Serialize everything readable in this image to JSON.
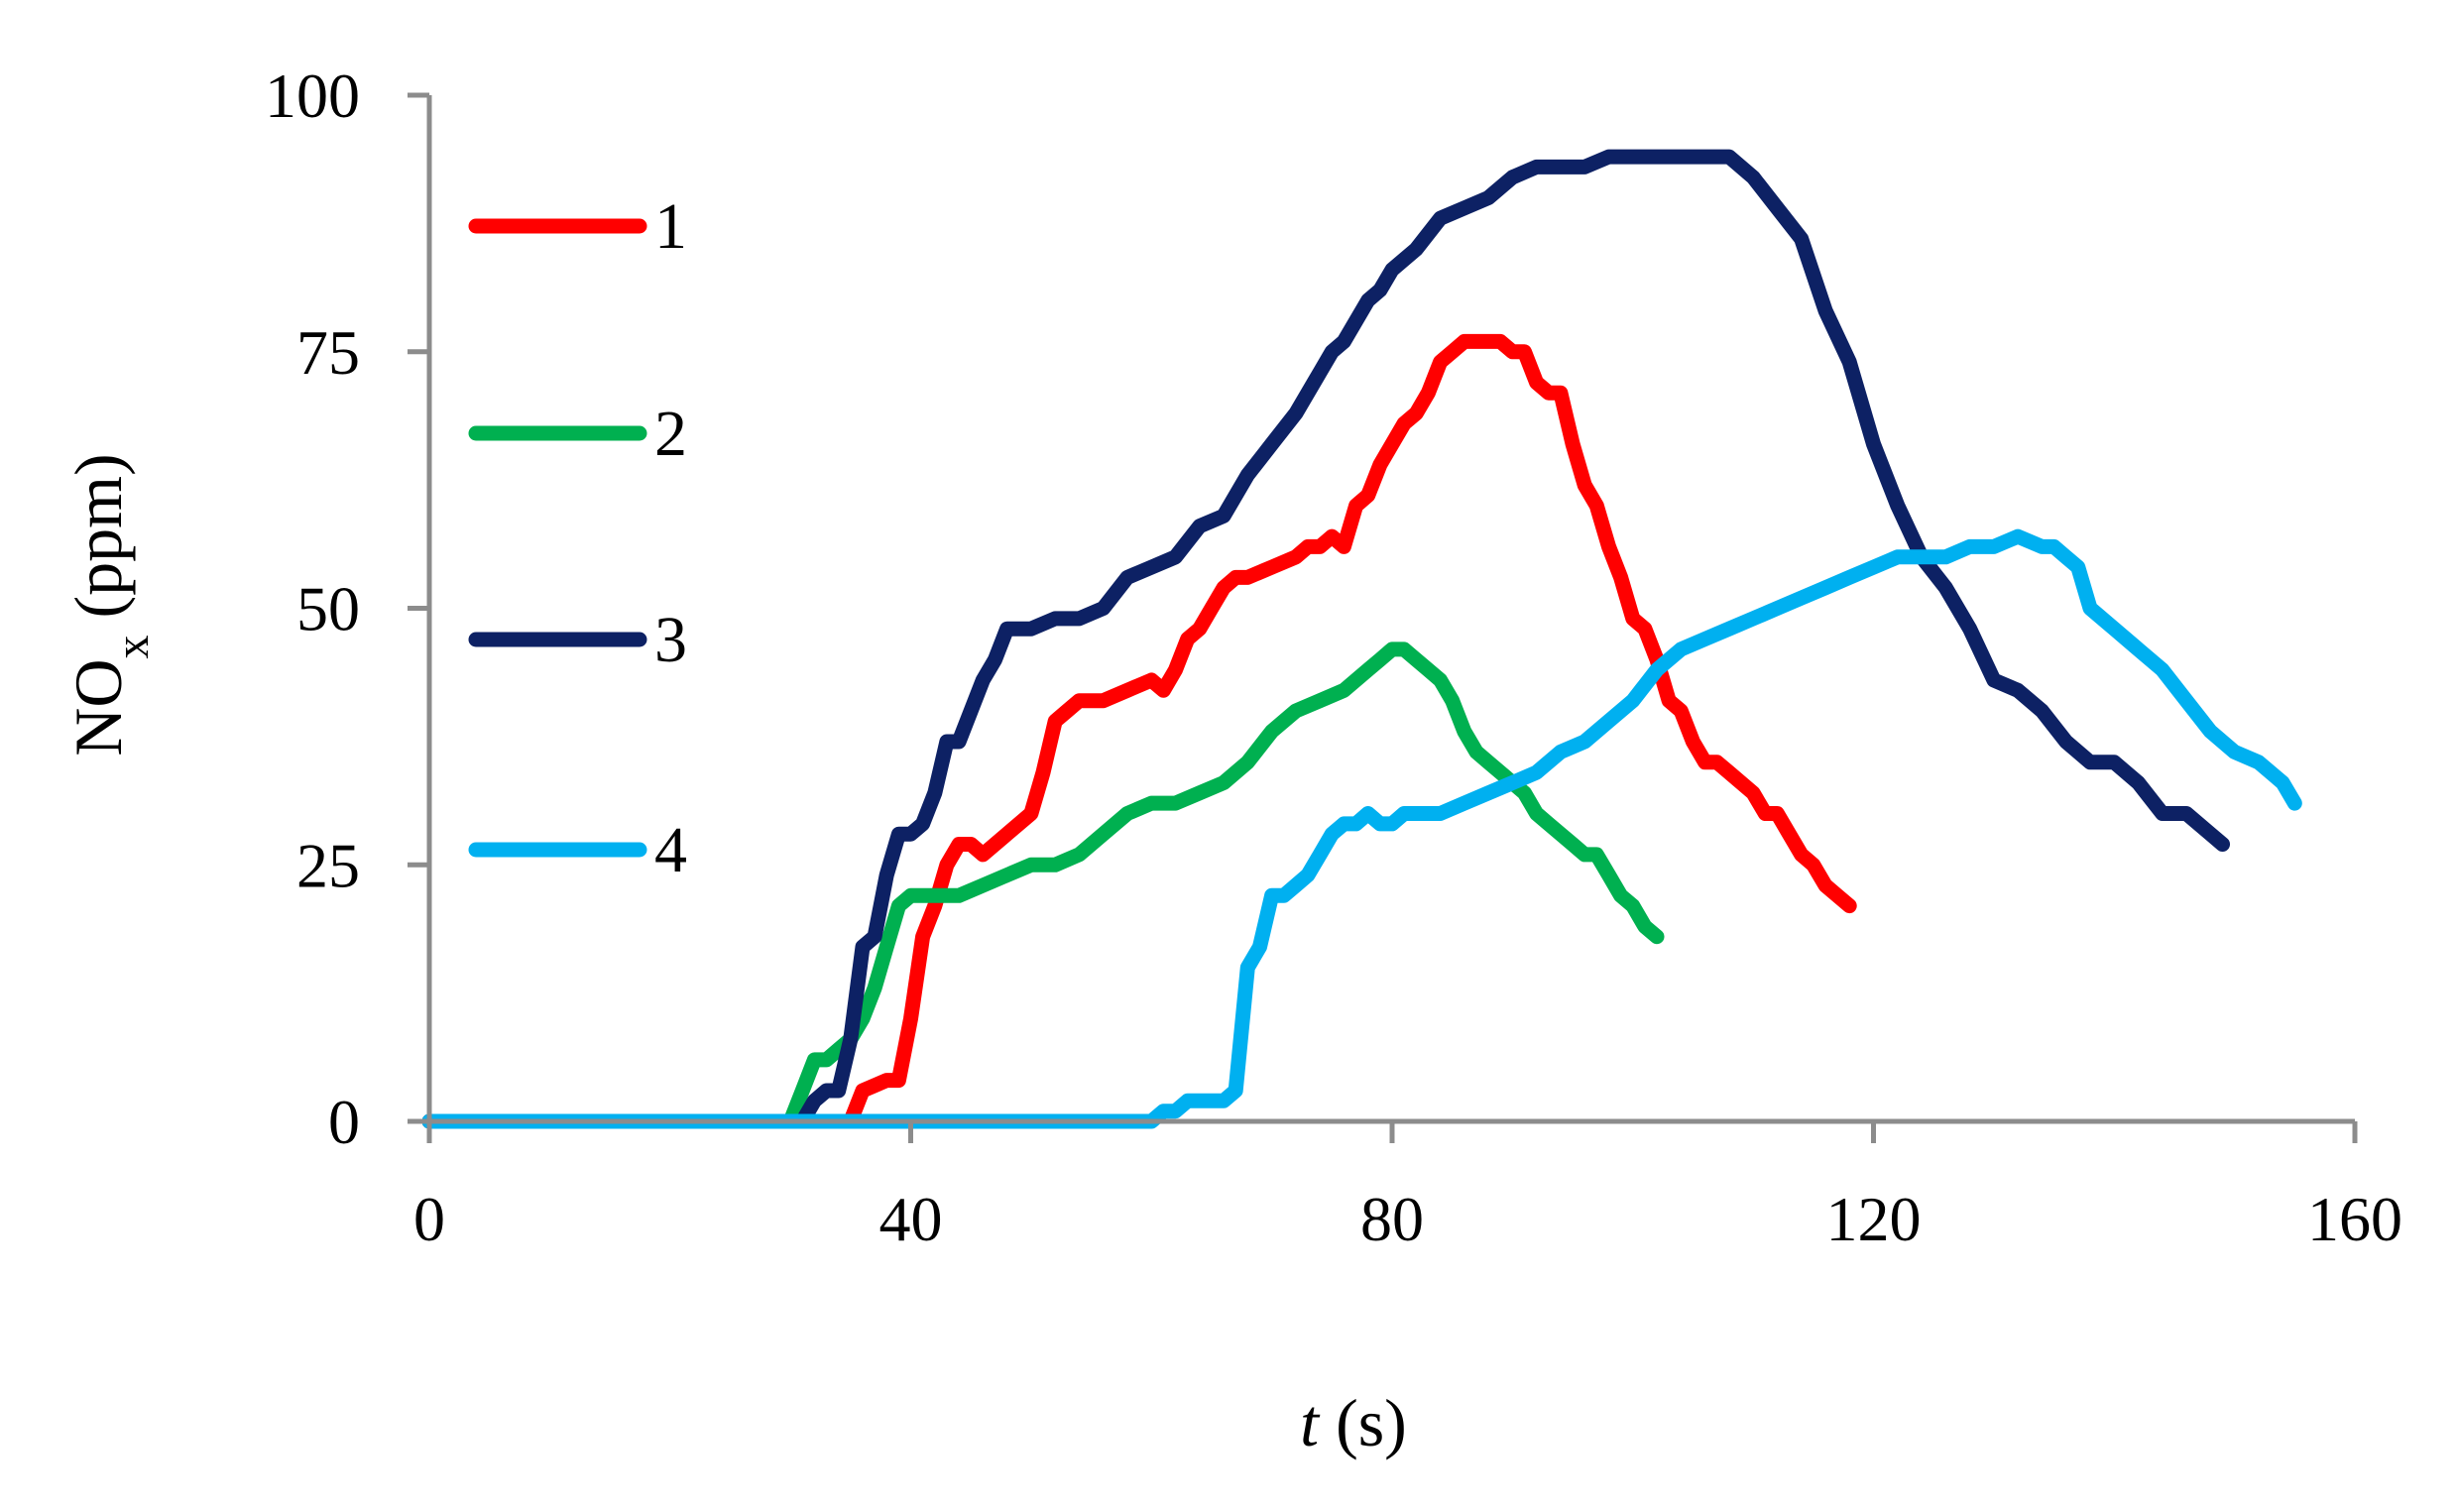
{
  "chart_data": {
    "type": "line",
    "xlabel": {
      "italic": "t",
      "rest": " (s)"
    },
    "ylabel": {
      "main": "NO",
      "sub": "x",
      "rest": " (ppm)"
    },
    "xlim": [
      0,
      160
    ],
    "ylim": [
      0,
      100
    ],
    "xticks": [
      0,
      40,
      80,
      120,
      160
    ],
    "yticks": [
      0,
      25,
      50,
      75,
      100
    ],
    "grid": false,
    "legend_placement": "top-left",
    "series": [
      {
        "name": "1",
        "color": "#ff0000",
        "x": [
          0,
          35,
          36,
          38,
          39,
          40,
          41,
          42,
          43,
          44,
          45,
          46,
          48,
          50,
          51,
          52,
          53,
          54,
          56,
          58,
          60,
          61,
          62,
          63,
          64,
          65,
          66,
          67,
          68,
          70,
          72,
          73,
          74,
          75,
          76,
          77,
          78,
          79,
          80,
          81,
          82,
          83,
          84,
          85,
          86,
          87,
          88,
          89,
          90,
          91,
          92,
          93,
          94,
          95,
          96,
          97,
          98,
          99,
          100,
          101,
          102,
          103,
          104,
          105,
          106,
          107,
          108,
          110,
          111,
          112,
          113,
          114,
          115,
          116,
          117,
          118
        ],
        "y": [
          0,
          0,
          3,
          4,
          4,
          10,
          18,
          21,
          25,
          27,
          27,
          26,
          28,
          30,
          34,
          39,
          40,
          41,
          41,
          42,
          43,
          42,
          44,
          47,
          48,
          50,
          52,
          53,
          53,
          54,
          55,
          56,
          56,
          57,
          56,
          60,
          61,
          64,
          66,
          68,
          69,
          71,
          74,
          75,
          76,
          76,
          76,
          76,
          75,
          75,
          72,
          71,
          71,
          66,
          62,
          60,
          56,
          53,
          49,
          48,
          45,
          41,
          40,
          37,
          35,
          35,
          34,
          32,
          30,
          30,
          28,
          26,
          25,
          23,
          22,
          21
        ]
      },
      {
        "name": "2",
        "color": "#00b050",
        "x": [
          0,
          30,
          31,
          32,
          33,
          34,
          35,
          36,
          37,
          38,
          39,
          40,
          42,
          44,
          46,
          48,
          50,
          52,
          54,
          56,
          58,
          60,
          62,
          64,
          66,
          68,
          70,
          72,
          74,
          76,
          78,
          79,
          80,
          81,
          82,
          83,
          84,
          85,
          86,
          87,
          88,
          89,
          90,
          91,
          92,
          93,
          94,
          95,
          96,
          97,
          98,
          99,
          100,
          101,
          102
        ],
        "y": [
          0,
          0,
          3,
          6,
          6,
          7,
          8,
          10,
          13,
          17,
          21,
          22,
          22,
          22,
          23,
          24,
          25,
          25,
          26,
          28,
          30,
          31,
          31,
          32,
          33,
          35,
          38,
          40,
          41,
          42,
          44,
          45,
          46,
          46,
          45,
          44,
          43,
          41,
          38,
          36,
          35,
          34,
          33,
          32,
          30,
          29,
          28,
          27,
          26,
          26,
          24,
          22,
          21,
          19,
          18
        ]
      },
      {
        "name": "3",
        "color": "#0d2164",
        "x": [
          0,
          30,
          31,
          32,
          33,
          34,
          35,
          36,
          37,
          38,
          39,
          40,
          41,
          42,
          43,
          44,
          45,
          46,
          47,
          48,
          50,
          52,
          54,
          56,
          58,
          60,
          62,
          64,
          66,
          68,
          70,
          72,
          74,
          75,
          76,
          78,
          79,
          80,
          82,
          84,
          86,
          88,
          90,
          92,
          94,
          96,
          98,
          100,
          102,
          104,
          106,
          108,
          110,
          112,
          114,
          116,
          118,
          120,
          122,
          124,
          126,
          128,
          130,
          132,
          134,
          136,
          138,
          140,
          142,
          144,
          146,
          148,
          149
        ],
        "y": [
          0,
          0,
          0,
          2,
          3,
          3,
          8,
          17,
          18,
          24,
          28,
          28,
          29,
          32,
          37,
          37,
          40,
          43,
          45,
          48,
          48,
          49,
          49,
          50,
          53,
          54,
          55,
          58,
          59,
          63,
          66,
          69,
          73,
          75,
          76,
          80,
          81,
          83,
          85,
          88,
          89,
          90,
          92,
          93,
          93,
          93,
          94,
          94,
          94,
          94,
          94,
          94,
          92,
          89,
          86,
          79,
          74,
          66,
          60,
          55,
          52,
          48,
          43,
          42,
          40,
          37,
          35,
          35,
          33,
          30,
          30,
          28,
          27
        ]
      },
      {
        "name": "4",
        "color": "#00b0f0",
        "x": [
          0,
          60,
          61,
          62,
          63,
          64,
          65,
          66,
          67,
          68,
          69,
          70,
          71,
          72,
          73,
          74,
          75,
          76,
          77,
          78,
          79,
          80,
          81,
          82,
          84,
          86,
          88,
          90,
          92,
          94,
          96,
          98,
          100,
          102,
          104,
          106,
          108,
          110,
          112,
          114,
          116,
          118,
          120,
          122,
          124,
          126,
          128,
          130,
          132,
          134,
          135,
          136,
          137,
          138,
          140,
          142,
          144,
          146,
          148,
          150,
          152,
          154,
          155
        ],
        "y": [
          0,
          0,
          1,
          1,
          2,
          2,
          2,
          2,
          3,
          15,
          17,
          22,
          22,
          23,
          24,
          26,
          28,
          29,
          29,
          30,
          29,
          29,
          30,
          30,
          30,
          31,
          32,
          33,
          34,
          36,
          37,
          39,
          41,
          44,
          46,
          47,
          48,
          49,
          50,
          51,
          52,
          53,
          54,
          55,
          55,
          55,
          56,
          56,
          57,
          56,
          56,
          55,
          54,
          50,
          48,
          46,
          44,
          41,
          38,
          36,
          35,
          33,
          31
        ]
      }
    ]
  }
}
